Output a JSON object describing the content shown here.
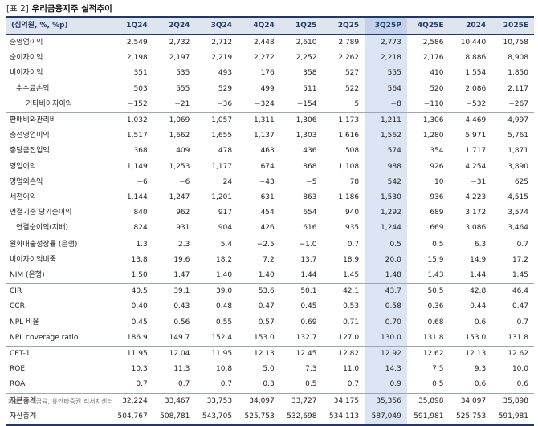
{
  "title": {
    "tag": "[표 2]",
    "text": "우리금융지주 실적추이"
  },
  "header": [
    "(십억원, %, %p)",
    "1Q24",
    "2Q24",
    "3Q24",
    "4Q24",
    "1Q25",
    "2Q25",
    "3Q25P",
    "4Q25E",
    "2024",
    "2025E"
  ],
  "rows": [
    {
      "label": "순영업이익",
      "values": [
        "2,549",
        "2,732",
        "2,712",
        "2,448",
        "2,610",
        "2,789",
        "2,773",
        "2,586",
        "10,440",
        "10,758"
      ]
    },
    {
      "label": "순이자이익",
      "values": [
        "2,198",
        "2,197",
        "2,219",
        "2,272",
        "2,252",
        "2,262",
        "2,218",
        "2,176",
        "8,886",
        "8,908"
      ]
    },
    {
      "label": "비이자이익",
      "values": [
        "351",
        "535",
        "493",
        "176",
        "358",
        "527",
        "555",
        "410",
        "1,554",
        "1,850"
      ]
    },
    {
      "label": "수수료손익",
      "values": [
        "503",
        "555",
        "529",
        "499",
        "511",
        "522",
        "564",
        "520",
        "2,086",
        "2,117"
      ]
    },
    {
      "label": "기타비이자이익",
      "values": [
        "−152",
        "−21",
        "−36",
        "−324",
        "−154",
        "5",
        "−8",
        "−110",
        "−532",
        "−267"
      ]
    },
    {
      "label": "판매비와관리비",
      "values": [
        "1,032",
        "1,069",
        "1,057",
        "1,311",
        "1,306",
        "1,173",
        "1,211",
        "1,306",
        "4,469",
        "4,997"
      ]
    },
    {
      "label": "충전영업이익",
      "values": [
        "1,517",
        "1,662",
        "1,655",
        "1,137",
        "1,303",
        "1,616",
        "1,562",
        "1,280",
        "5,971",
        "5,761"
      ]
    },
    {
      "label": "총당금전입액",
      "values": [
        "368",
        "409",
        "478",
        "463",
        "436",
        "508",
        "574",
        "354",
        "1,717",
        "1,871"
      ]
    },
    {
      "label": "영업이익",
      "values": [
        "1,149",
        "1,253",
        "1,177",
        "674",
        "868",
        "1,108",
        "988",
        "926",
        "4,254",
        "3,890"
      ]
    },
    {
      "label": "영업외손익",
      "values": [
        "−6",
        "−6",
        "24",
        "−43",
        "−5",
        "78",
        "542",
        "10",
        "−31",
        "625"
      ]
    },
    {
      "label": "세전이익",
      "values": [
        "1,144",
        "1,247",
        "1,201",
        "631",
        "863",
        "1,186",
        "1,530",
        "936",
        "4,223",
        "4,515"
      ]
    },
    {
      "label": "연결기준 당기순이익",
      "values": [
        "840",
        "962",
        "917",
        "454",
        "654",
        "940",
        "1,292",
        "689",
        "3,172",
        "3,574"
      ]
    },
    {
      "label": "연결순이익(지배)",
      "values": [
        "824",
        "931",
        "904",
        "426",
        "616",
        "935",
        "1,244",
        "669",
        "3,086",
        "3,464"
      ]
    },
    {
      "label": "원화대출성장률 (은행)",
      "values": [
        "1.3",
        "2.3",
        "5.4",
        "−2.5",
        "−1.0",
        "0.7",
        "0.5",
        "0.5",
        "6.3",
        "0.7"
      ]
    },
    {
      "label": "비이자이익비중",
      "values": [
        "13.8",
        "19.6",
        "18.2",
        "7.2",
        "13.7",
        "18.9",
        "20.0",
        "15.9",
        "14.9",
        "17.2"
      ]
    },
    {
      "label": "NIM (은행)",
      "values": [
        "1.50",
        "1.47",
        "1.40",
        "1.40",
        "1.44",
        "1.45",
        "1.48",
        "1.43",
        "1.44",
        "1.45"
      ]
    },
    {
      "label": "CIR",
      "values": [
        "40.5",
        "39.1",
        "39.0",
        "53.6",
        "50.1",
        "42.1",
        "43.7",
        "50.5",
        "42.8",
        "46.4"
      ]
    },
    {
      "label": "CCR",
      "values": [
        "0.40",
        "0.43",
        "0.48",
        "0.47",
        "0.45",
        "0.53",
        "0.58",
        "0.36",
        "0.44",
        "0.47"
      ]
    },
    {
      "label": "NPL 비율",
      "values": [
        "0.45",
        "0.56",
        "0.55",
        "0.57",
        "0.69",
        "0.71",
        "0.70",
        "0.68",
        "0.6",
        "0.7"
      ]
    },
    {
      "label": "NPL coverage ratio",
      "values": [
        "186.9",
        "149.7",
        "152.4",
        "153.0",
        "132.7",
        "127.0",
        "130.0",
        "131.8",
        "153.0",
        "131.8"
      ]
    },
    {
      "label": "CET-1",
      "values": [
        "11.95",
        "12.04",
        "11.95",
        "12.13",
        "12.45",
        "12.82",
        "12.92",
        "12.62",
        "12.13",
        "12.62"
      ]
    },
    {
      "label": "ROE",
      "values": [
        "10.3",
        "11.3",
        "10.8",
        "5.0",
        "7.3",
        "11.0",
        "14.3",
        "7.5",
        "9.3",
        "10.0"
      ]
    },
    {
      "label": "ROA",
      "values": [
        "0.7",
        "0.7",
        "0.7",
        "0.3",
        "0.5",
        "0.7",
        "0.9",
        "0.5",
        "0.6",
        "0.6"
      ]
    },
    {
      "label": "자본총계",
      "values": [
        "32,224",
        "33,467",
        "33,753",
        "34,097",
        "33,727",
        "34,175",
        "35,356",
        "35,898",
        "34,097",
        "35,898"
      ]
    },
    {
      "label": "자산총계",
      "values": [
        "504,767",
        "508,781",
        "543,705",
        "525,753",
        "532,698",
        "534,113",
        "587,049",
        "591,981",
        "525,753",
        "591,981"
      ]
    }
  ],
  "source": "자료: 우리금융, 유안타증권 리서치센터"
}
